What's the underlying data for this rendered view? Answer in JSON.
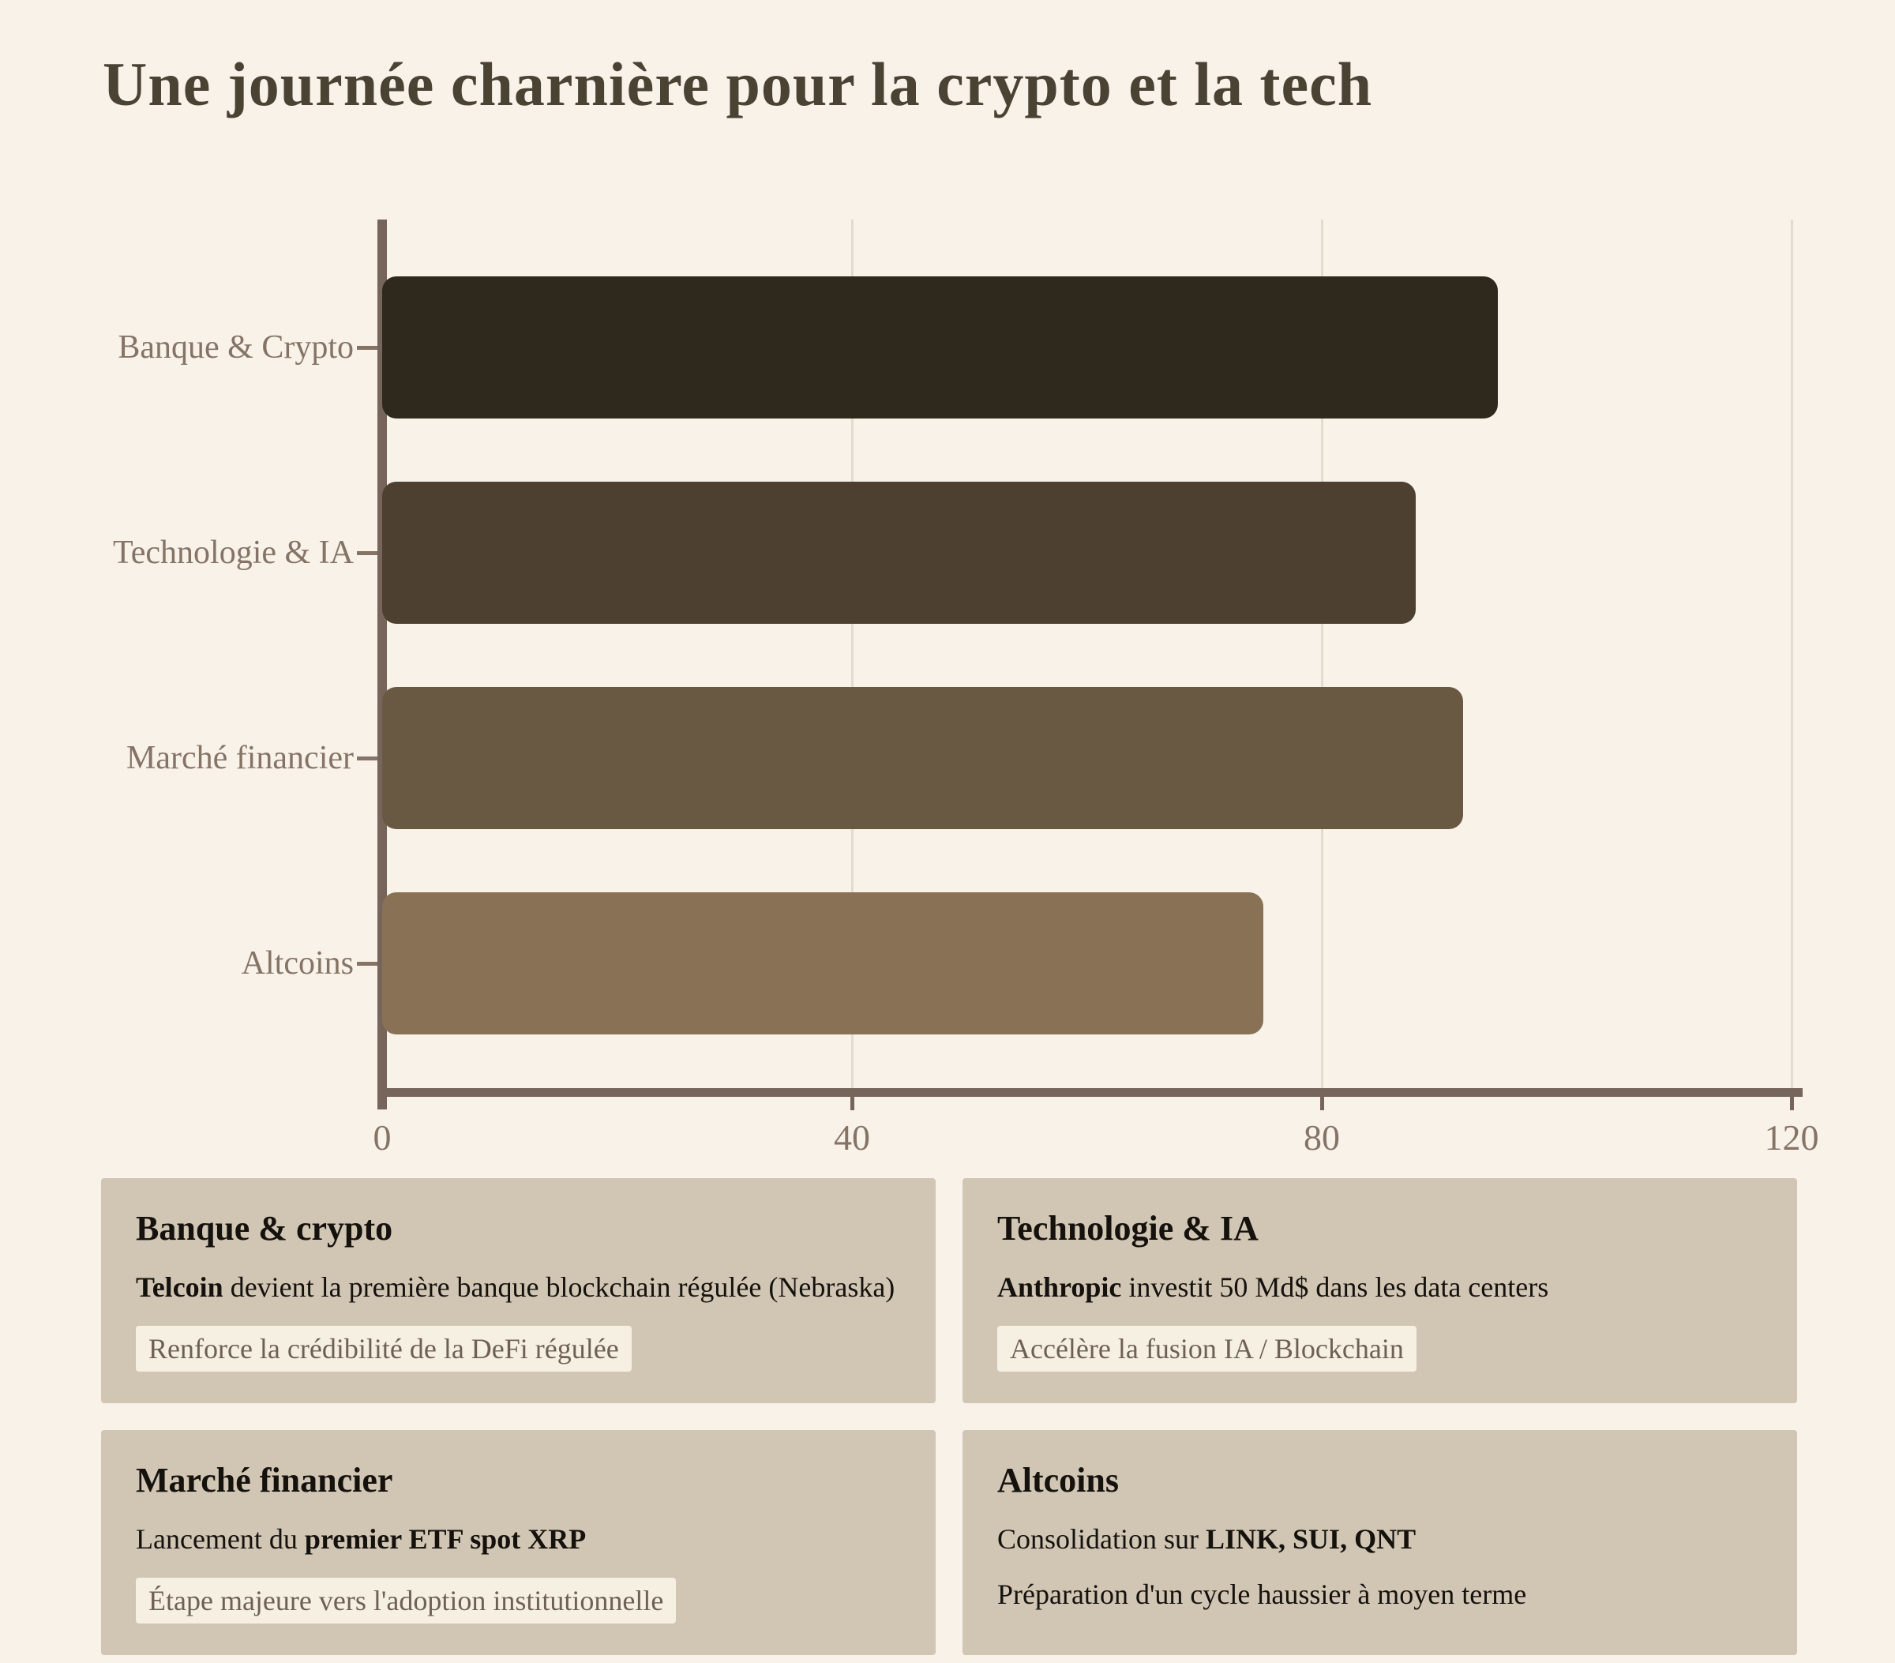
{
  "page": {
    "title": "Une journée charnière pour la crypto et la tech"
  },
  "colors": {
    "background": "#F8F2E9",
    "title_text": "#4A4334",
    "axis_line": "#75655A",
    "axis_label": "#857466",
    "gridline": "#E2DCCF",
    "card_background": "#D1C5B4",
    "card_text": "#15120D",
    "highlight_background": "#F6F0E3",
    "highlight_text": "#6E6153"
  },
  "chart_data": {
    "type": "bar",
    "orientation": "horizontal",
    "title": "Une journée charnière pour la crypto et la tech",
    "categories": [
      "Banque & Crypto",
      "Technologie & IA",
      "Marché financier",
      "Altcoins"
    ],
    "values": [
      95,
      88,
      92,
      75
    ],
    "bar_colors": [
      "#2F291D",
      "#4E4031",
      "#6A5942",
      "#887154"
    ],
    "xlabel": "",
    "ylabel": "",
    "xlim": [
      0,
      120
    ],
    "x_ticks": [
      0,
      40,
      80,
      120
    ],
    "grid": "vertical-light",
    "legend": "none"
  },
  "cards": [
    {
      "heading": "Banque & crypto",
      "body": [
        {
          "text": "Telcoin",
          "bold": true
        },
        {
          "text": " devient la première banque blockchain régulée (Nebraska)",
          "bold": false
        }
      ],
      "highlight": "Renforce la crédibilité de la DeFi régulée",
      "note": null
    },
    {
      "heading": "Technologie & IA",
      "body": [
        {
          "text": "Anthropic",
          "bold": true
        },
        {
          "text": " investit 50 Md$ dans les data centers",
          "bold": false
        }
      ],
      "highlight": "Accélère la fusion IA / Blockchain",
      "note": null
    },
    {
      "heading": "Marché financier",
      "body": [
        {
          "text": "Lancement du ",
          "bold": false
        },
        {
          "text": "premier ETF spot XRP",
          "bold": true
        }
      ],
      "highlight": "Étape majeure vers l'adoption institutionnelle",
      "note": null
    },
    {
      "heading": "Altcoins",
      "body": [
        {
          "text": "Consolidation sur ",
          "bold": false
        },
        {
          "text": "LINK, SUI, QNT",
          "bold": true
        }
      ],
      "highlight": null,
      "note": "Préparation d'un cycle haussier à moyen terme"
    }
  ]
}
